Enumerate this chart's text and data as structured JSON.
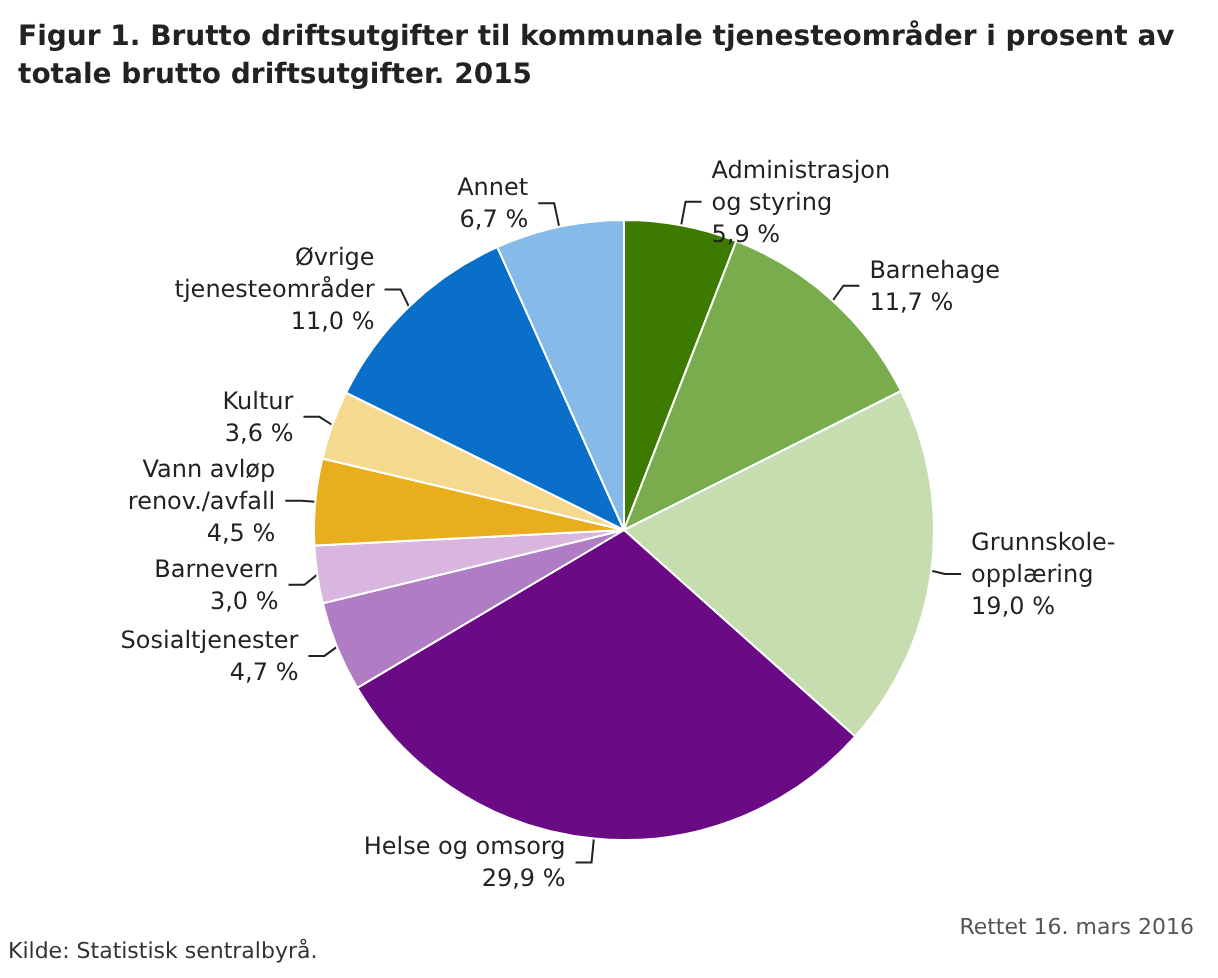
{
  "chart_data": {
    "type": "pie",
    "title": "Figur 1. Brutto driftsutgifter til kommunale tjenesteområder i prosent av totale brutto driftsutgifter. 2015",
    "categories": [
      "Administrasjon\nog styring",
      "Barnehage",
      "Grunnskole-\nopplæring",
      "Helse og omsorg",
      "Sosialtjenester",
      "Barnevern",
      "Vann avløp\nrenov./avfall",
      "Kultur",
      "Øvrige\ntjenesteområder",
      "Annet"
    ],
    "values": [
      5.9,
      11.7,
      19.0,
      29.9,
      4.7,
      3.0,
      4.5,
      3.6,
      11.0,
      6.7
    ],
    "value_labels": [
      "5,9 %",
      "11,7 %",
      "19,0 %",
      "29,9 %",
      "4,7 %",
      "3,0 %",
      "4,5 %",
      "3,6 %",
      "11,0 %",
      "6,7 %"
    ],
    "colors": [
      "#3c7a00",
      "#78ac4c",
      "#c6ddb0",
      "#6a0a84",
      "#b07cc4",
      "#d8b6e0",
      "#e8ae1e",
      "#f5d98e",
      "#0a6fc8",
      "#86bae8"
    ],
    "annotations": [
      "Kilde: Statistisk sentralbyrå.",
      "Rettet 16. mars 2016"
    ]
  }
}
